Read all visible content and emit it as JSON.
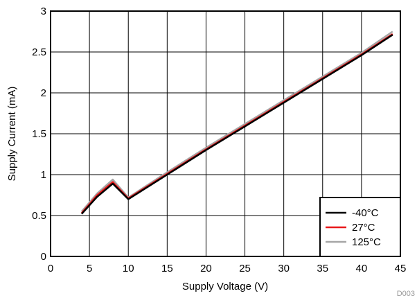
{
  "chart_data": {
    "type": "line",
    "title": "",
    "xlabel": "Supply Voltage (V)",
    "ylabel": "Supply Current (mA)",
    "xlim": [
      0,
      45
    ],
    "ylim": [
      0,
      3
    ],
    "xticks": [
      0,
      5,
      10,
      15,
      20,
      25,
      30,
      35,
      40,
      45
    ],
    "yticks": [
      0,
      0.5,
      1,
      1.5,
      2,
      2.5,
      3
    ],
    "xtick_labels": [
      "0",
      "5",
      "10",
      "15",
      "20",
      "25",
      "30",
      "35",
      "40",
      "45"
    ],
    "ytick_labels": [
      "0",
      "0.5",
      "1",
      "1.5",
      "2",
      "2.5",
      "3"
    ],
    "grid": true,
    "legend_position": "bottom-right",
    "footnote": "D003",
    "series": [
      {
        "name": "125°C",
        "color": "#a6a6a6",
        "x": [
          4,
          6,
          8,
          10,
          15,
          20,
          25,
          30,
          35,
          40,
          44
        ],
        "y": [
          0.55,
          0.77,
          0.94,
          0.72,
          1.03,
          1.33,
          1.62,
          1.91,
          2.2,
          2.49,
          2.75
        ]
      },
      {
        "name": "27°C",
        "color": "#e8191b",
        "x": [
          4,
          6,
          8,
          10,
          15,
          20,
          25,
          30,
          35,
          40,
          44
        ],
        "y": [
          0.53,
          0.75,
          0.91,
          0.71,
          1.01,
          1.31,
          1.6,
          1.89,
          2.18,
          2.47,
          2.72
        ]
      },
      {
        "name": "-40°C",
        "color": "#000000",
        "x": [
          4,
          6,
          8,
          10,
          15,
          20,
          25,
          30,
          35,
          40,
          44
        ],
        "y": [
          0.52,
          0.73,
          0.89,
          0.7,
          1.0,
          1.3,
          1.59,
          1.88,
          2.17,
          2.46,
          2.71
        ]
      }
    ],
    "legend_order": [
      "-40°C",
      "27°C",
      "125°C"
    ]
  }
}
